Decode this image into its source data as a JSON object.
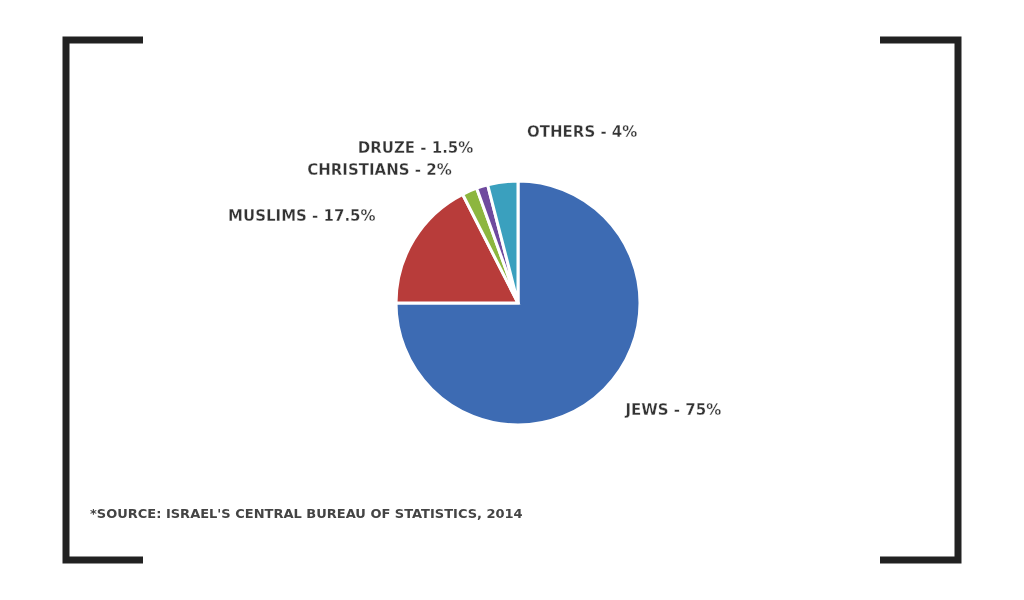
{
  "chart_data": {
    "type": "pie",
    "categories": [
      "JEWS",
      "MUSLIMS",
      "CHRISTIANS",
      "DRUZE",
      "OTHERS"
    ],
    "values": [
      75,
      17.5,
      2,
      1.5,
      4
    ],
    "colors": [
      "#3d6bb3",
      "#b83c3a",
      "#8db63f",
      "#6f4a9e",
      "#3aa0be"
    ],
    "value_labels": [
      "75%",
      "17.5%",
      "2%",
      "1.5%",
      "4%"
    ],
    "annotations": [
      "*SOURCE: ISRAEL'S CENTRAL BUREAU OF STATISTICS, 2014"
    ]
  }
}
